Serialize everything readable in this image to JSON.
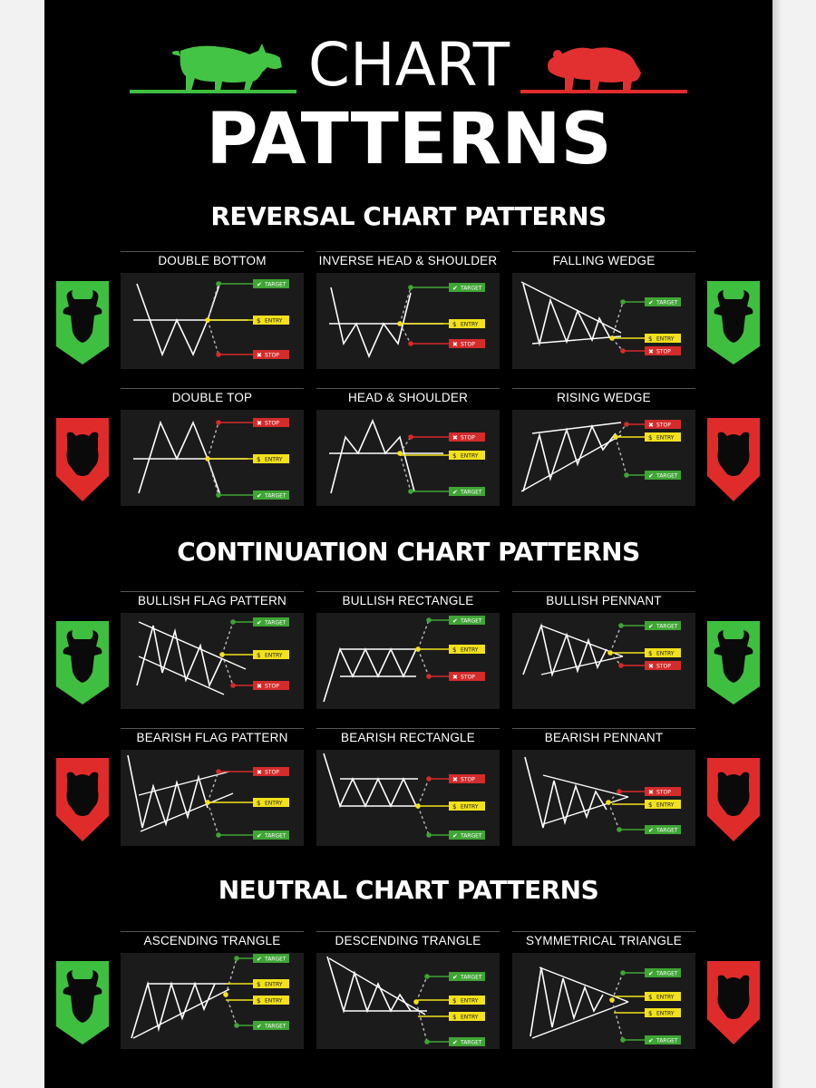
{
  "header": {
    "title_line1": "CHART",
    "title_line2": "PATTERNS"
  },
  "colors": {
    "bull": "#3fbf3f",
    "bear": "#e02b2b",
    "entry": "#f2e11b",
    "target": "#3fa535",
    "stop": "#d42b2b"
  },
  "icons": {
    "bull": "bull-head-icon",
    "bear": "bear-head-icon"
  },
  "labels": {
    "target": "TARGET",
    "entry": "ENTRY",
    "stop": "STOP"
  },
  "sections": {
    "reversal": {
      "title": "REVERSAL CHART PATTERNS",
      "rows": [
        {
          "badge": "bull",
          "panels": [
            {
              "name": "DOUBLE BOTTOM",
              "pattern": "double-bottom"
            },
            {
              "name": "INVERSE HEAD & SHOULDER",
              "pattern": "inverse-head-shoulder"
            },
            {
              "name": "FALLING WEDGE",
              "pattern": "falling-wedge"
            }
          ]
        },
        {
          "badge": "bear",
          "panels": [
            {
              "name": "DOUBLE TOP",
              "pattern": "double-top"
            },
            {
              "name": "HEAD & SHOULDER",
              "pattern": "head-shoulder"
            },
            {
              "name": "RISING WEDGE",
              "pattern": "rising-wedge"
            }
          ]
        }
      ]
    },
    "continuation": {
      "title": "CONTINUATION CHART PATTERNS",
      "rows": [
        {
          "badge": "bull",
          "panels": [
            {
              "name": "BULLISH FLAG PATTERN",
              "pattern": "bullish-flag"
            },
            {
              "name": "BULLISH RECTANGLE",
              "pattern": "bullish-rectangle"
            },
            {
              "name": "BULLISH PENNANT",
              "pattern": "bullish-pennant"
            }
          ]
        },
        {
          "badge": "bear",
          "panels": [
            {
              "name": "BEARISH FLAG PATTERN",
              "pattern": "bearish-flag"
            },
            {
              "name": "BEARISH RECTANGLE",
              "pattern": "bearish-rectangle"
            },
            {
              "name": "BEARISH PENNANT",
              "pattern": "bearish-pennant"
            }
          ]
        }
      ]
    },
    "neutral": {
      "title": "NEUTRAL CHART PATTERNS",
      "rows": [
        {
          "badge_left": "bull",
          "badge_right": "bear",
          "panels": [
            {
              "name": "ASCENDING TRANGLE",
              "pattern": "ascending-triangle"
            },
            {
              "name": "DESCENDING TRANGLE",
              "pattern": "descending-triangle"
            },
            {
              "name": "SYMMETRICAL TRIANGLE",
              "pattern": "symmetrical-triangle"
            }
          ]
        }
      ]
    }
  }
}
